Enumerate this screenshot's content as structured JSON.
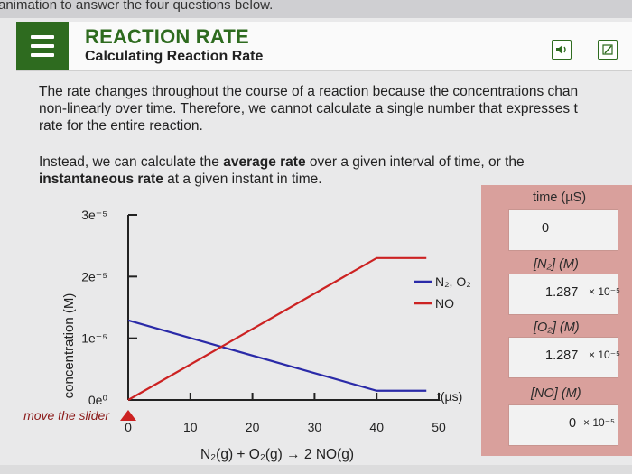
{
  "top_banner": "animation to answer the four questions below.",
  "header": {
    "title": "REACTION RATE",
    "subtitle": "Calculating Reaction Rate",
    "audio_icon": "speaker-icon",
    "notes_icon": "notepad-icon"
  },
  "intro": {
    "line1": "The rate changes throughout the course of a reaction because the concentrations chan",
    "line2": "non-linearly over time. Therefore, we cannot calculate a single number that expresses t",
    "line3": "rate for the entire reaction.",
    "p2_line1_a": "Instead, we can calculate the ",
    "p2_line1_b": "average rate",
    "p2_line1_c": " over a given interval of time, or the",
    "p2_line2_a": "instantaneous rate",
    "p2_line2_b": " at a given instant in time."
  },
  "chart_data": {
    "type": "line",
    "ylabel": "concentration (M)",
    "xlabel": "t(µs)",
    "x_ticks": [
      "0",
      "10",
      "20",
      "30",
      "40",
      "50"
    ],
    "y_ticks": [
      "0e⁰",
      "1e⁻⁵",
      "2e⁻⁵",
      "3e⁻⁵"
    ],
    "xlim": [
      0,
      50
    ],
    "ylim": [
      0,
      3e-05
    ],
    "series": [
      {
        "name": "N₂, O₂",
        "color": "#2a2aa8",
        "x": [
          0,
          40,
          48
        ],
        "y": [
          1.29e-05,
          1.5e-06,
          1.5e-06
        ]
      },
      {
        "name": "NO",
        "color": "#cc2222",
        "x": [
          0,
          40,
          48
        ],
        "y": [
          0,
          2.3e-05,
          2.3e-05
        ]
      }
    ],
    "equation": "N₂(g) + O₂(g) → 2 NO(g)",
    "slider_label": "move the slider",
    "slider_value": 0
  },
  "panel": {
    "time_label": "time (µS)",
    "time_value": "0",
    "n2_label": "[N₂] (M)",
    "n2_value": "1.287",
    "n2_exp": "× 10⁻⁵",
    "o2_label": "[O₂] (M)",
    "o2_value": "1.287",
    "o2_exp": "× 10⁻⁵",
    "no_label": "[NO] (M)",
    "no_value": "0",
    "no_exp": "× 10⁻⁵"
  }
}
